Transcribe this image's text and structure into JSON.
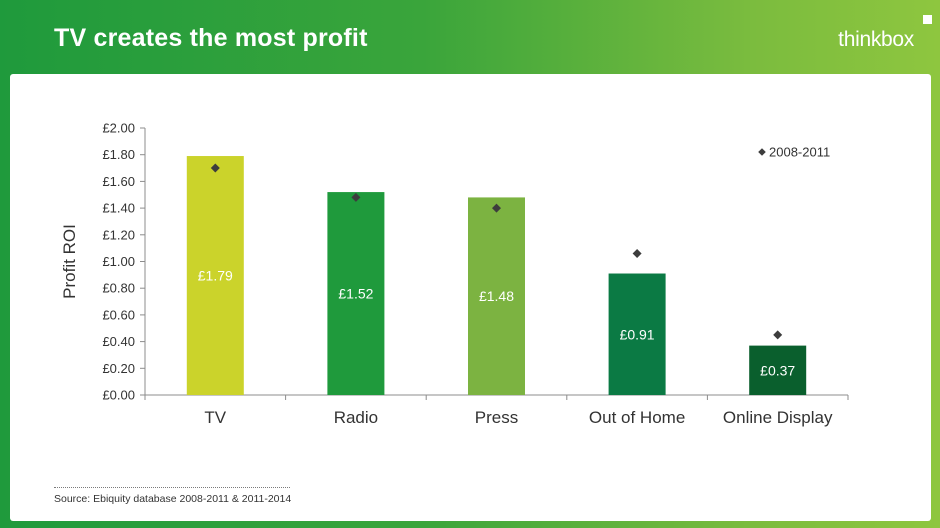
{
  "title": "TV creates the most profit",
  "logo_text": "thinkbox",
  "source": "Source: Ebiquity database 2008-2011 & 2011-2014",
  "chart_data": {
    "type": "bar",
    "categories": [
      "TV",
      "Radio",
      "Press",
      "Out of Home",
      "Online Display"
    ],
    "values": [
      1.79,
      1.52,
      1.48,
      0.91,
      0.37
    ],
    "value_labels": [
      "£1.79",
      "£1.52",
      "£1.48",
      "£0.91",
      "£0.37"
    ],
    "bar_colors": [
      "#cbd32b",
      "#1f9a3c",
      "#7cb341",
      "#0b7a44",
      "#0a5f2d"
    ],
    "series": [
      {
        "name": "2008-2011",
        "type": "scatter",
        "marker": "diamond",
        "values": [
          1.7,
          1.48,
          1.4,
          1.06,
          0.45
        ]
      }
    ],
    "ylabel": "Profit ROI",
    "ylim": [
      0,
      2.0
    ],
    "yticks": [
      0,
      0.2,
      0.4,
      0.6,
      0.8,
      1.0,
      1.2,
      1.4,
      1.6,
      1.8,
      2.0
    ],
    "ytick_labels": [
      "£0.00",
      "£0.20",
      "£0.40",
      "£0.60",
      "£0.80",
      "£1.00",
      "£1.20",
      "£1.40",
      "£1.60",
      "£1.80",
      "£2.00"
    ],
    "legend_position": "top-right",
    "grid": false
  }
}
